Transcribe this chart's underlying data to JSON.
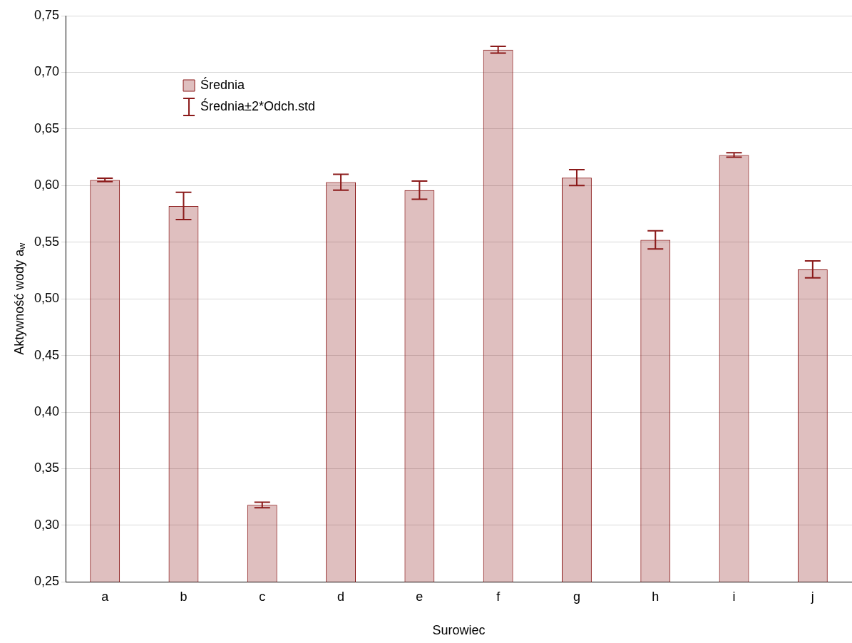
{
  "chart_data": {
    "type": "bar",
    "xlabel": "Surowiec",
    "ylabel": "Aktywność wody a$_{w}$",
    "categories": [
      "a",
      "b",
      "c",
      "d",
      "e",
      "f",
      "g",
      "h",
      "i",
      "j"
    ],
    "series": [
      {
        "name": "Średnia",
        "color": "#8b1a1a",
        "values": [
          0.605,
          0.582,
          0.318,
          0.603,
          0.596,
          0.72,
          0.607,
          0.552,
          0.627,
          0.526
        ],
        "errors": [
          0.0015,
          0.012,
          0.0025,
          0.007,
          0.008,
          0.003,
          0.007,
          0.008,
          0.002,
          0.0075
        ]
      }
    ],
    "annotations": [
      "Średnia±2*Odch.std"
    ],
    "ylim": [
      0.25,
      0.75
    ],
    "yticks": [
      {
        "value": 0.25,
        "label": "0,25"
      },
      {
        "value": 0.3,
        "label": "0,30"
      },
      {
        "value": 0.35,
        "label": "0,35"
      },
      {
        "value": 0.4,
        "label": "0,40"
      },
      {
        "value": 0.45,
        "label": "0,45"
      },
      {
        "value": 0.5,
        "label": "0,50"
      },
      {
        "value": 0.55,
        "label": "0,55"
      },
      {
        "value": 0.6,
        "label": "0,60"
      },
      {
        "value": 0.65,
        "label": "0,65"
      },
      {
        "value": 0.7,
        "label": "0,70"
      },
      {
        "value": 0.75,
        "label": "0,75"
      }
    ],
    "grid": "y",
    "legend": "top left"
  }
}
